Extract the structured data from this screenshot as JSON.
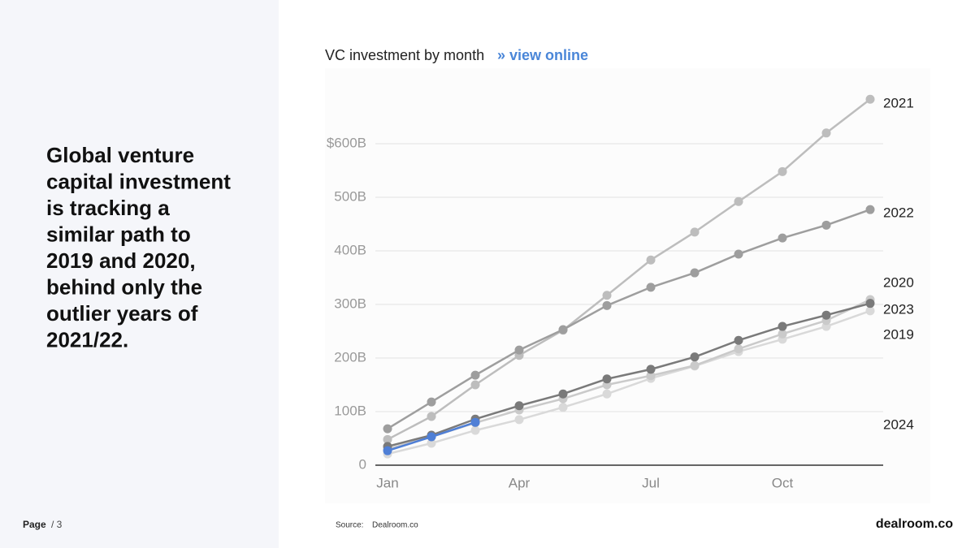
{
  "headline_lines": [
    "Global venture",
    "capital investment",
    "is tracking a",
    "similar path to",
    "2019 and 2020,",
    "behind only the",
    "outlier years of",
    "2021/22."
  ],
  "footer": {
    "page": "Page",
    "page_number": "/ 3",
    "source_label": "Source:",
    "source": "Dealroom.co",
    "logo": "dealroom.co"
  },
  "chart_data": {
    "type": "line",
    "title": "VC investment by month",
    "link_text": "» view online",
    "categories": [
      "Jan",
      null,
      null,
      "Apr",
      null,
      null,
      "Jul",
      null,
      null,
      "Oct",
      null,
      null
    ],
    "ylim": [
      0,
      700
    ],
    "yticks": [
      0,
      {
        "value": 100,
        "label": "100B"
      },
      {
        "value": 200,
        "label": "200B"
      },
      {
        "value": 300,
        "label": "300B"
      },
      {
        "value": 400,
        "label": "400B"
      },
      {
        "value": 500,
        "label": "500B"
      },
      {
        "value": 600,
        "label": "$600B"
      }
    ],
    "grid": true,
    "series": [
      {
        "name": "2019",
        "color": "#d9d9d9",
        "values": [
          21,
          41,
          65,
          85,
          108,
          133,
          162,
          185,
          212,
          235,
          259,
          288
        ]
      },
      {
        "name": "2020",
        "color": "#cacaca",
        "values": [
          30,
          53,
          79,
          103,
          124,
          150,
          167,
          186,
          217,
          245,
          270,
          309
        ]
      },
      {
        "name": "2021",
        "color": "#bdbdbd",
        "values": [
          48,
          91,
          150,
          205,
          252,
          317,
          383,
          435,
          492,
          548,
          620,
          683
        ]
      },
      {
        "name": "2022",
        "color": "#9e9e9e",
        "values": [
          68,
          118,
          168,
          215,
          253,
          298,
          332,
          359,
          394,
          424,
          448,
          477
        ]
      },
      {
        "name": "2023",
        "color": "#7a7a7a",
        "values": [
          35,
          56,
          86,
          111,
          133,
          161,
          179,
          202,
          233,
          259,
          280,
          302
        ]
      },
      {
        "name": "2024",
        "color": "#4f7fd6",
        "values": [
          27,
          53,
          80,
          null,
          null,
          null,
          null,
          null,
          null,
          null,
          null,
          null
        ]
      }
    ]
  }
}
